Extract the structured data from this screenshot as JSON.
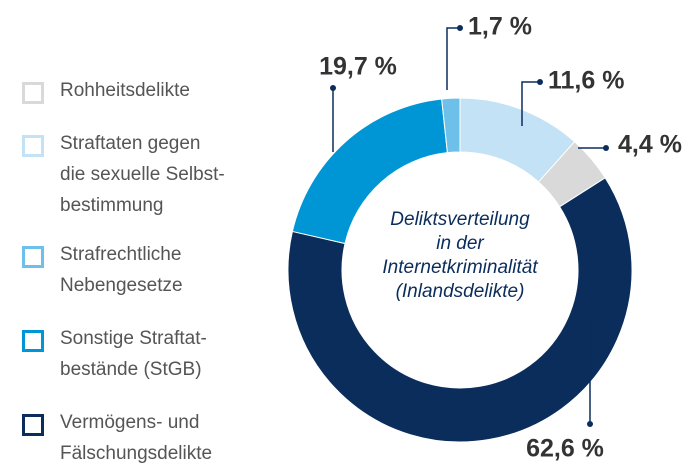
{
  "chart_data": {
    "type": "pie",
    "title": "Deliktsverteilung\nin der\nInternetkriminalität\n(Inlandsdelikte)",
    "categories": [
      "Rohheitsdelikte",
      "Straftaten gegen\ndie sexuelle Selbst-\nbestimmung",
      "Strafrechtliche\nNebengesetze",
      "Sonstige Straftat-\nbestände (StGB)",
      "Vermögens- und\nFälschungsdelikte"
    ],
    "values": [
      4.4,
      11.6,
      1.7,
      19.7,
      62.6
    ],
    "value_labels": [
      "4,4 %",
      "11,6 %",
      "1,7 %",
      "19,7 %",
      "62,6 %"
    ],
    "colors": [
      "#d9d9d9",
      "#c4e2f5",
      "#6cc0ea",
      "#0096d6",
      "#0b2d5c"
    ]
  }
}
